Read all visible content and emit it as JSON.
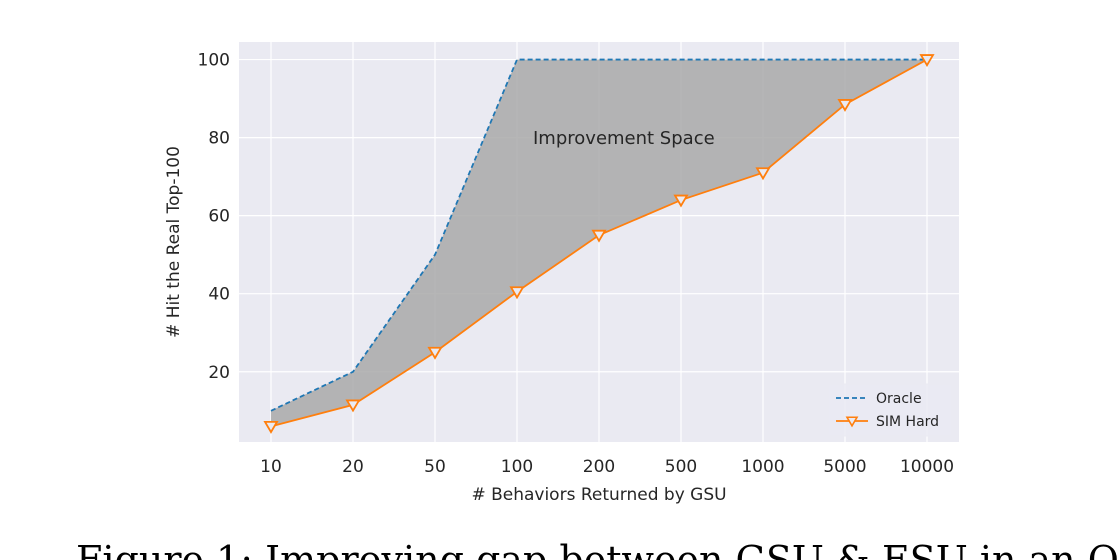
{
  "chart_data": {
    "type": "line",
    "categories": [
      "10",
      "20",
      "50",
      "100",
      "200",
      "500",
      "1000",
      "5000",
      "10000"
    ],
    "series": [
      {
        "name": "Oracle",
        "values": [
          10,
          20,
          50,
          100,
          100,
          100,
          100,
          100,
          100
        ],
        "color": "#1f77b4",
        "style": "dashed"
      },
      {
        "name": "SIM Hard",
        "values": [
          6,
          11.5,
          25,
          40.5,
          55,
          64,
          71,
          88.5,
          100
        ],
        "color": "#ff7f0e",
        "style": "solid",
        "marker": "triangle-down-open"
      }
    ],
    "fill_between": {
      "series": [
        "Oracle",
        "SIM Hard"
      ],
      "color": "#a9a9a9"
    },
    "annotation": "Improvement Space",
    "xlabel": "# Behaviors Returned by GSU",
    "ylabel": "# Hit the Real Top-100",
    "yticks": [
      20,
      40,
      60,
      80,
      100
    ],
    "ylim": [
      2,
      104.5
    ],
    "grid": true,
    "legend_position": "lower-right",
    "background": "#eaeaf2"
  },
  "caption": {
    "text": "Figure 1: Improving gap between GSU & ESU in an O..."
  }
}
